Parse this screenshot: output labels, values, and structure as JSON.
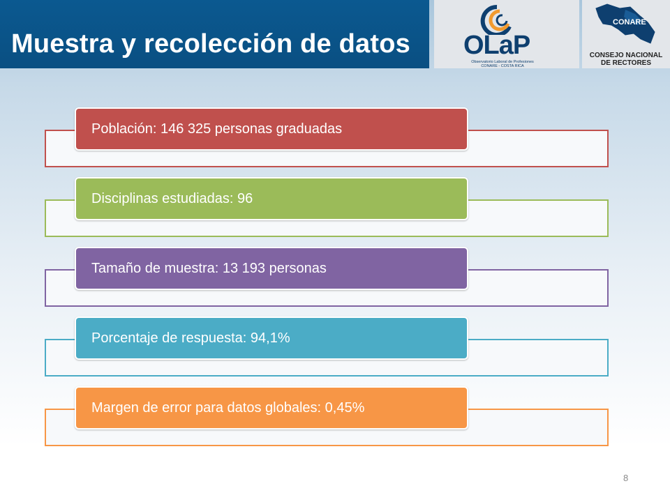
{
  "slide": {
    "title": "Muestra y recolección de datos",
    "page_number": "8"
  },
  "logos": {
    "olap": {
      "word": "OLaP",
      "subtitle_line1": "Observatorio Laboral de Profesiones",
      "subtitle_line2": "CONARE - COSTA RICA"
    },
    "conare": {
      "badge": "CONARE",
      "line1": "CONSEJO NACIONAL",
      "line2": "DE RECTORES"
    }
  },
  "items": [
    {
      "label": "Población: 146 325 personas graduadas",
      "color": "#c0504d"
    },
    {
      "label": "Disciplinas estudiadas: 96",
      "color": "#9bbb59"
    },
    {
      "label": "Tamaño de muestra: 13 193 personas",
      "color": "#8064a2"
    },
    {
      "label": "Porcentaje de respuesta: 94,1%",
      "color": "#4bacc6"
    },
    {
      "label": "Margen de error para datos globales: 0,45%",
      "color": "#f79646"
    }
  ]
}
